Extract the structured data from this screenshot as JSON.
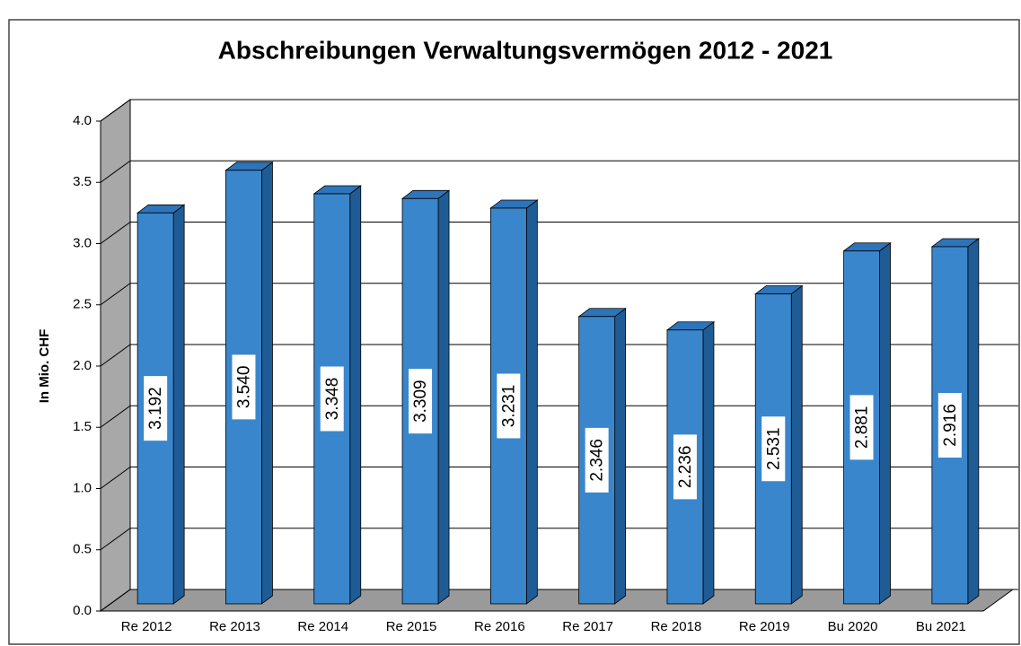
{
  "chart_data": {
    "type": "bar3d",
    "title": "Abschreibungen Verwaltungsvermögen 2012 - 2021",
    "ylabel": "In Mio. CHF",
    "categories": [
      "Re 2012",
      "Re 2013",
      "Re 2014",
      "Re 2015",
      "Re 2016",
      "Re 2017",
      "Re 2018",
      "Re 2019",
      "Bu 2020",
      "Bu 2021"
    ],
    "values": [
      3.192,
      3.54,
      3.348,
      3.309,
      3.231,
      2.346,
      2.236,
      2.531,
      2.881,
      2.916
    ],
    "value_labels": [
      "3.192",
      "3.540",
      "3.348",
      "3.309",
      "3.231",
      "2.346",
      "2.236",
      "2.531",
      "2.881",
      "2.916"
    ],
    "color": "#3a86cc",
    "ylim": [
      0,
      4
    ],
    "yticks": [
      {
        "value": 0,
        "label": "0.0"
      },
      {
        "value": 0.5,
        "label": "0.5"
      },
      {
        "value": 1,
        "label": "1.0"
      },
      {
        "value": 1.5,
        "label": "1.5"
      },
      {
        "value": 2,
        "label": "2.0"
      },
      {
        "value": 2.5,
        "label": "2.5"
      },
      {
        "value": 3,
        "label": "3.0"
      },
      {
        "value": 3.5,
        "label": "3.5"
      },
      {
        "value": 4,
        "label": "4.0"
      }
    ],
    "grid": true
  }
}
